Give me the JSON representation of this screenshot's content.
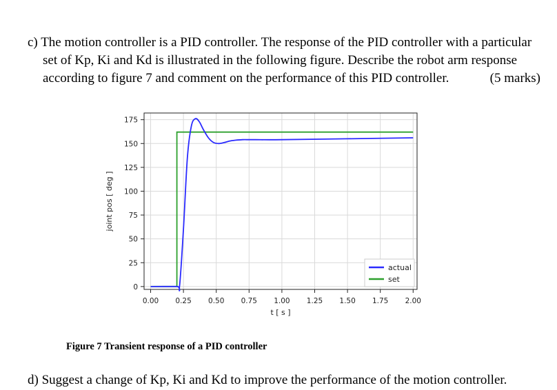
{
  "question_c": {
    "label": "c)",
    "text_line1": "The motion controller is a PID controller. The response of the PID controller with a particular",
    "text_line2": "set of Kp, Ki and Kd is illustrated in the following figure. Describe the robot arm response",
    "text_line3": "according to figure 7 and comment on the performance of this PID controller.",
    "marks": "(5 marks)"
  },
  "figure": {
    "caption": "Figure 7 Transient response of a PID controller"
  },
  "question_d": {
    "label": "d)",
    "text": "Suggest a change of Kp, Ki and Kd to improve the performance of the motion controller."
  },
  "chart_data": {
    "type": "line",
    "title": "",
    "xlabel": "t [ s ]",
    "ylabel": "joint pos [ deg ]",
    "xlim": [
      -0.05,
      2.03
    ],
    "ylim": [
      -3,
      182
    ],
    "xticks": [
      "0.00",
      "0.25",
      "0.50",
      "0.75",
      "1.00",
      "1.25",
      "1.50",
      "1.75",
      "2.00"
    ],
    "yticks": [
      "0",
      "25",
      "50",
      "75",
      "100",
      "125",
      "150",
      "175"
    ],
    "grid": true,
    "legend_position": "lower-right",
    "series": [
      {
        "name": "actual",
        "color": "#2a2aff",
        "x": [
          0.0,
          0.2,
          0.22,
          0.25,
          0.28,
          0.31,
          0.34,
          0.37,
          0.4,
          0.44,
          0.48,
          0.52,
          0.56,
          0.6,
          0.65,
          0.7,
          0.75,
          0.8,
          1.0,
          1.5,
          2.0
        ],
        "y": [
          0,
          0,
          0,
          60,
          135,
          168,
          176,
          173,
          165,
          156,
          151,
          150,
          151,
          152.5,
          153.5,
          154,
          154,
          154,
          154,
          155,
          156
        ]
      },
      {
        "name": "set",
        "color": "#2ca02c",
        "x": [
          0.0,
          0.2,
          0.2,
          2.0
        ],
        "y": [
          0,
          0,
          162,
          162
        ]
      }
    ]
  }
}
